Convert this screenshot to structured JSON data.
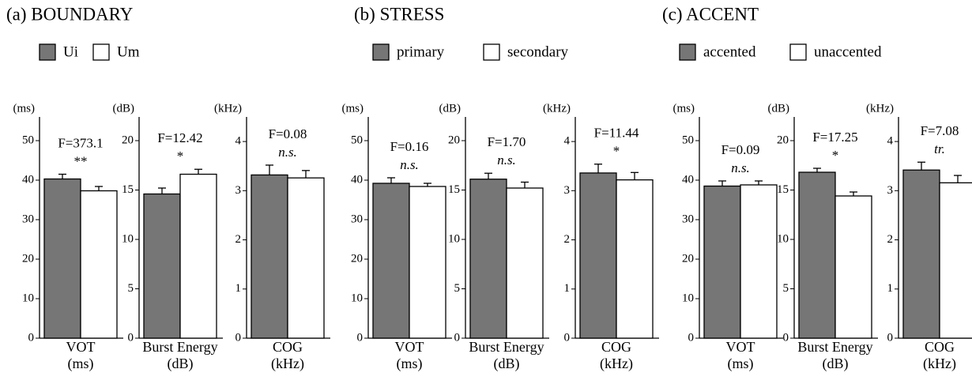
{
  "chart_data": [
    {
      "type": "bar",
      "title": "(a) BOUNDARY",
      "series": [
        {
          "name": "Ui",
          "color": "#767676"
        },
        {
          "name": "Um",
          "color": "#ffffff"
        }
      ],
      "subplots": [
        {
          "xlabel": [
            "VOT",
            "(ms)"
          ],
          "ylabel": "(ms)",
          "ylim": [
            0,
            56
          ],
          "yticks": [
            0,
            10,
            20,
            30,
            40,
            50
          ],
          "values": [
            40.3,
            37.3
          ],
          "errors": [
            1.2,
            1.1
          ],
          "stat": "F=373.1",
          "significance": "**"
        },
        {
          "xlabel": [
            "Burst Energy",
            "(dB)"
          ],
          "ylabel": "(dB)",
          "ylim": [
            0,
            22.4
          ],
          "yticks": [
            0,
            5,
            10,
            15,
            20
          ],
          "values": [
            14.6,
            16.6
          ],
          "errors": [
            0.6,
            0.5
          ],
          "stat": "F=12.42",
          "significance": "*"
        },
        {
          "xlabel": [
            "COG",
            "(kHz)"
          ],
          "ylabel": "(kHz)",
          "ylim": [
            0,
            4.5
          ],
          "yticks": [
            0,
            1,
            2,
            3,
            4
          ],
          "values": [
            3.32,
            3.26
          ],
          "errors": [
            0.2,
            0.15
          ],
          "stat": "F=0.08",
          "significance": "n.s."
        }
      ]
    },
    {
      "type": "bar",
      "title": "(b) STRESS",
      "series": [
        {
          "name": "primary",
          "color": "#767676"
        },
        {
          "name": "secondary",
          "color": "#ffffff"
        }
      ],
      "subplots": [
        {
          "xlabel": [
            "VOT",
            "(ms)"
          ],
          "ylabel": "(ms)",
          "ylim": [
            0,
            56
          ],
          "yticks": [
            0,
            10,
            20,
            30,
            40,
            50
          ],
          "values": [
            39.2,
            38.4
          ],
          "errors": [
            1.4,
            0.8
          ],
          "stat": "F=0.16",
          "significance": "n.s."
        },
        {
          "xlabel": [
            "Burst Energy",
            "(dB)"
          ],
          "ylabel": "(dB)",
          "ylim": [
            0,
            22.4
          ],
          "yticks": [
            0,
            5,
            10,
            15,
            20
          ],
          "values": [
            16.1,
            15.2
          ],
          "errors": [
            0.6,
            0.6
          ],
          "stat": "F=1.70",
          "significance": "n.s."
        },
        {
          "xlabel": [
            "COG",
            "(kHz)"
          ],
          "ylabel": "(kHz)",
          "ylim": [
            0,
            4.5
          ],
          "yticks": [
            0,
            1,
            2,
            3,
            4
          ],
          "values": [
            3.36,
            3.22
          ],
          "errors": [
            0.18,
            0.15
          ],
          "stat": "F=11.44",
          "significance": "*"
        }
      ]
    },
    {
      "type": "bar",
      "title": "(c) ACCENT",
      "series": [
        {
          "name": "accented",
          "color": "#767676"
        },
        {
          "name": "unaccented",
          "color": "#ffffff"
        }
      ],
      "subplots": [
        {
          "xlabel": [
            "VOT",
            "(ms)"
          ],
          "ylabel": "(ms)",
          "ylim": [
            0,
            56
          ],
          "yticks": [
            0,
            10,
            20,
            30,
            40,
            50
          ],
          "values": [
            38.5,
            38.8
          ],
          "errors": [
            1.3,
            1.0
          ],
          "stat": "F=0.09",
          "significance": "n.s."
        },
        {
          "xlabel": [
            "Burst Energy",
            "(dB)"
          ],
          "ylabel": "(dB)",
          "ylim": [
            0,
            22.4
          ],
          "yticks": [
            0,
            5,
            10,
            15,
            20
          ],
          "values": [
            16.8,
            14.4
          ],
          "errors": [
            0.4,
            0.4
          ],
          "stat": "F=17.25",
          "significance": "*"
        },
        {
          "xlabel": [
            "COG",
            "(kHz)"
          ],
          "ylabel": "(kHz)",
          "ylim": [
            0,
            4.5
          ],
          "yticks": [
            0,
            1,
            2,
            3,
            4
          ],
          "values": [
            3.42,
            3.16
          ],
          "errors": [
            0.16,
            0.15
          ],
          "stat": "F=7.08",
          "significance": "tr."
        }
      ]
    }
  ]
}
